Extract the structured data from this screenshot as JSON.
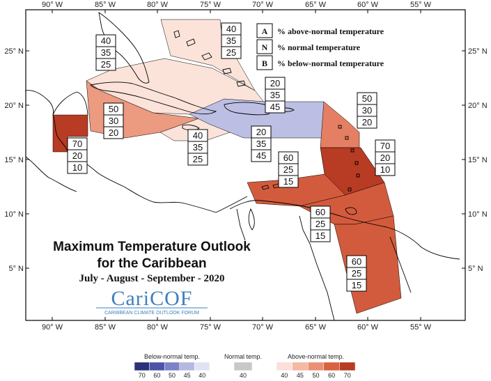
{
  "map": {
    "lon_ticks": [
      "90° W",
      "85° W",
      "80° W",
      "75° W",
      "70° W",
      "65° W",
      "60° W",
      "55° W"
    ],
    "lat_ticks": [
      "25° N",
      "20° N",
      "15° N",
      "10° N",
      "5° N"
    ]
  },
  "legend": {
    "items": [
      {
        "key": "A",
        "text": "% above-normal temperature"
      },
      {
        "key": "N",
        "text": "% normal temperature"
      },
      {
        "key": "B",
        "text": "% below-normal temperature"
      }
    ]
  },
  "regions": [
    {
      "name": "bahamas",
      "A": "40",
      "N": "35",
      "B": "25",
      "color": "#fbe3da"
    },
    {
      "name": "cuba-west",
      "A": "40",
      "N": "35",
      "B": "25",
      "color": "#fbe3da"
    },
    {
      "name": "cuba-east",
      "A": "50",
      "N": "30",
      "B": "20",
      "color": "#ec9a80"
    },
    {
      "name": "jamaica",
      "A": "40",
      "N": "35",
      "B": "25",
      "color": "#fbe3da"
    },
    {
      "name": "belize",
      "A": "70",
      "N": "20",
      "B": "10",
      "color": "#b83b23"
    },
    {
      "name": "hispaniola",
      "A": "20",
      "N": "35",
      "B": "45",
      "color": "#bcbfe3"
    },
    {
      "name": "hispaniola-south",
      "A": "20",
      "N": "35",
      "B": "45",
      "color": "#bcbfe3"
    },
    {
      "name": "leeward",
      "A": "50",
      "N": "30",
      "B": "20",
      "color": "#e57f63"
    },
    {
      "name": "windward",
      "A": "70",
      "N": "20",
      "B": "10",
      "color": "#b83b23"
    },
    {
      "name": "abc-islands",
      "A": "60",
      "N": "25",
      "B": "15",
      "color": "#d35b3d"
    },
    {
      "name": "trinidad",
      "A": "60",
      "N": "25",
      "B": "15",
      "color": "#d35b3d"
    },
    {
      "name": "guianas",
      "A": "60",
      "N": "25",
      "B": "15",
      "color": "#d35b3d"
    }
  ],
  "title": {
    "line1": "Maximum Temperature Outlook",
    "line2": "for the Caribbean",
    "period": "July - August - September - 2020"
  },
  "logo": {
    "name": "CariCOF",
    "tagline": "CARIBBEAN CLIMATE OUTLOOK FORUM"
  },
  "colorbars": {
    "below": {
      "title": "Below-normal temp.",
      "ticks": [
        "70",
        "60",
        "50",
        "45",
        "40"
      ],
      "colors": [
        "#2b3278",
        "#4b55a6",
        "#7b83c6",
        "#b5b9e2",
        "#e1e3f4"
      ]
    },
    "normal": {
      "title": "Normal temp.",
      "ticks": [
        "40"
      ],
      "colors": [
        "#c8c8c8"
      ]
    },
    "above": {
      "title": "Above-normal temp.",
      "ticks": [
        "40",
        "45",
        "50",
        "60",
        "70"
      ],
      "colors": [
        "#fae0d8",
        "#f5b8a5",
        "#eb9074",
        "#d9633f",
        "#b83b23"
      ]
    }
  }
}
